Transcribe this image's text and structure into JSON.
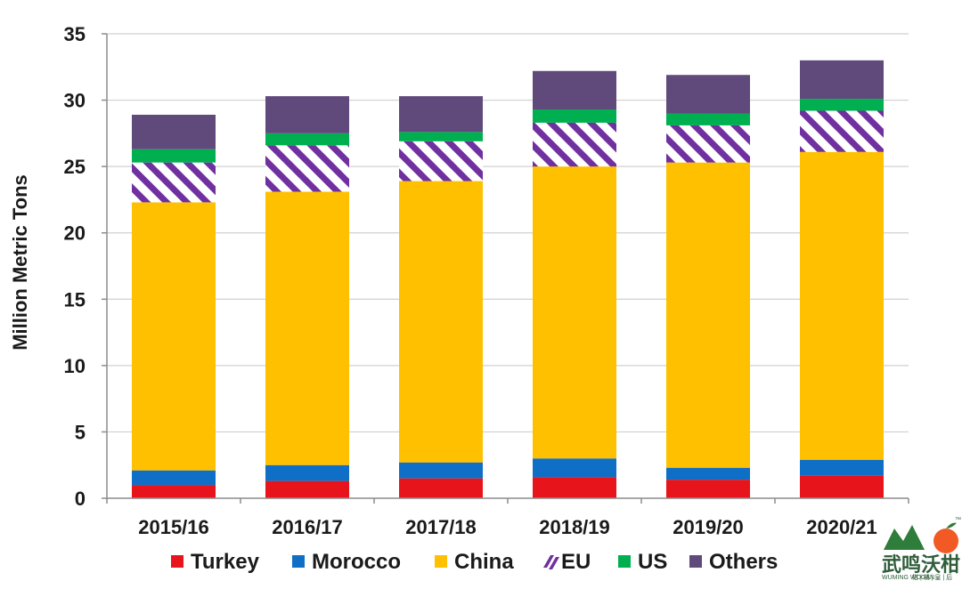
{
  "chart_data": {
    "type": "bar",
    "stacked": true,
    "categories": [
      "2015/16",
      "2016/17",
      "2017/18",
      "2018/19",
      "2019/20",
      "2020/21"
    ],
    "series": [
      {
        "name": "Turkey",
        "color": "#e8141c",
        "values": [
          1.0,
          1.3,
          1.5,
          1.6,
          1.4,
          1.7
        ]
      },
      {
        "name": "Morocco",
        "color": "#0f6fc6",
        "values": [
          1.1,
          1.2,
          1.2,
          1.4,
          0.9,
          1.2
        ]
      },
      {
        "name": "China",
        "color": "#ffc000",
        "values": [
          20.2,
          20.6,
          21.2,
          22.0,
          23.0,
          23.2
        ]
      },
      {
        "name": "EU",
        "color": "#7030a0",
        "pattern": "hatched",
        "values": [
          3.0,
          3.5,
          3.0,
          3.3,
          2.8,
          3.1
        ]
      },
      {
        "name": "US",
        "color": "#00b050",
        "values": [
          1.0,
          0.9,
          0.7,
          1.0,
          0.9,
          0.9
        ]
      },
      {
        "name": "Others",
        "color": "#604a7b",
        "values": [
          2.6,
          2.8,
          2.7,
          2.9,
          2.9,
          2.9
        ]
      }
    ],
    "ylabel": "Million Metric Tons",
    "xlabel": "",
    "ylim": [
      0,
      35
    ],
    "yticks": [
      0,
      5,
      10,
      15,
      20,
      25,
      30,
      35
    ],
    "grid": true,
    "legend_position": "bottom"
  },
  "logo": {
    "text": "武鸣沃柑",
    "subtitle": "WUMING WOGAN",
    "tagline": "柑 | 橘 | 皇 | 后",
    "tm": "™"
  }
}
